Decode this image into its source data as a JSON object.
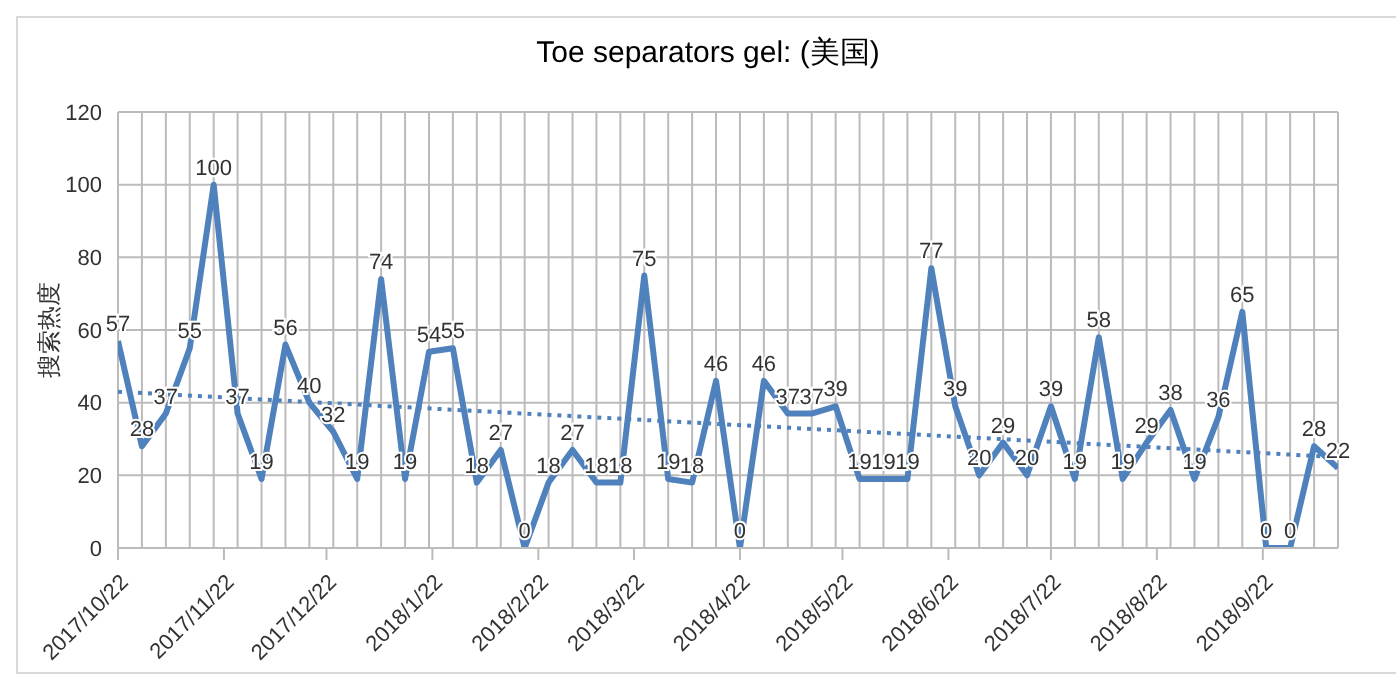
{
  "chart_data": {
    "type": "line",
    "title": "Toe separators gel: (美国)",
    "ylabel": "搜索热度",
    "x": [
      "2017-10-22",
      "2017-10-29",
      "2017-11-05",
      "2017-11-12",
      "2017-11-19",
      "2017-11-26",
      "2017-12-03",
      "2017-12-10",
      "2017-12-17",
      "2017-12-24",
      "2017-12-31",
      "2018-01-07",
      "2018-01-14",
      "2018-01-21",
      "2018-01-28",
      "2018-02-04",
      "2018-02-11",
      "2018-02-18",
      "2018-02-25",
      "2018-03-04",
      "2018-03-11",
      "2018-03-18",
      "2018-03-25",
      "2018-04-01",
      "2018-04-08",
      "2018-04-15",
      "2018-04-22",
      "2018-04-29",
      "2018-05-06",
      "2018-05-13",
      "2018-05-20",
      "2018-05-27",
      "2018-06-03",
      "2018-06-10",
      "2018-06-17",
      "2018-06-24",
      "2018-07-01",
      "2018-07-08",
      "2018-07-15",
      "2018-07-22",
      "2018-07-29",
      "2018-08-05",
      "2018-08-12",
      "2018-08-19",
      "2018-08-26",
      "2018-09-02",
      "2018-09-09",
      "2018-09-16",
      "2018-09-23",
      "2018-09-30",
      "2018-10-07",
      "2018-10-14"
    ],
    "series": [
      {
        "color": "#4f81bd",
        "values": [
          57,
          28,
          37,
          55,
          100,
          37,
          19,
          56,
          40,
          32,
          19,
          74,
          19,
          54,
          55,
          18,
          27,
          0,
          18,
          27,
          18,
          18,
          75,
          19,
          18,
          46,
          0,
          46,
          37,
          37,
          39,
          19,
          19,
          19,
          77,
          39,
          20,
          29,
          20,
          39,
          19,
          58,
          19,
          29,
          38,
          19,
          36,
          65,
          0,
          0,
          28,
          22
        ]
      },
      {
        "type": "line",
        "color": "#4f81bd",
        "line_style": "dotted",
        "x": [
          "2017-10-22",
          "2018-10-14"
        ],
        "values": [
          43,
          25
        ],
        "value_labels": [
          null,
          null
        ]
      }
    ],
    "data_labels": true,
    "xlim": [
      "2017-10-22",
      "2018-10-14"
    ],
    "xticks": [
      {
        "value": "2017-10-22",
        "label": "2017/10/22"
      },
      {
        "value": "2017-11-22",
        "label": "2017/11/22"
      },
      {
        "value": "2017-12-22",
        "label": "2017/12/22"
      },
      {
        "value": "2018-01-22",
        "label": "2018/1/22"
      },
      {
        "value": "2018-02-22",
        "label": "2018/2/22"
      },
      {
        "value": "2018-03-22",
        "label": "2018/3/22"
      },
      {
        "value": "2018-04-22",
        "label": "2018/4/22"
      },
      {
        "value": "2018-05-22",
        "label": "2018/5/22"
      },
      {
        "value": "2018-06-22",
        "label": "2018/6/22"
      },
      {
        "value": "2018-07-22",
        "label": "2018/7/22"
      },
      {
        "value": "2018-08-22",
        "label": "2018/8/22"
      },
      {
        "value": "2018-09-22",
        "label": "2018/9/22"
      }
    ],
    "ylim": [
      0,
      120
    ],
    "yticks": [
      0,
      20,
      40,
      60,
      80,
      100,
      120
    ],
    "grid": true,
    "legend": false,
    "marker": "none",
    "line_style": "solid"
  }
}
